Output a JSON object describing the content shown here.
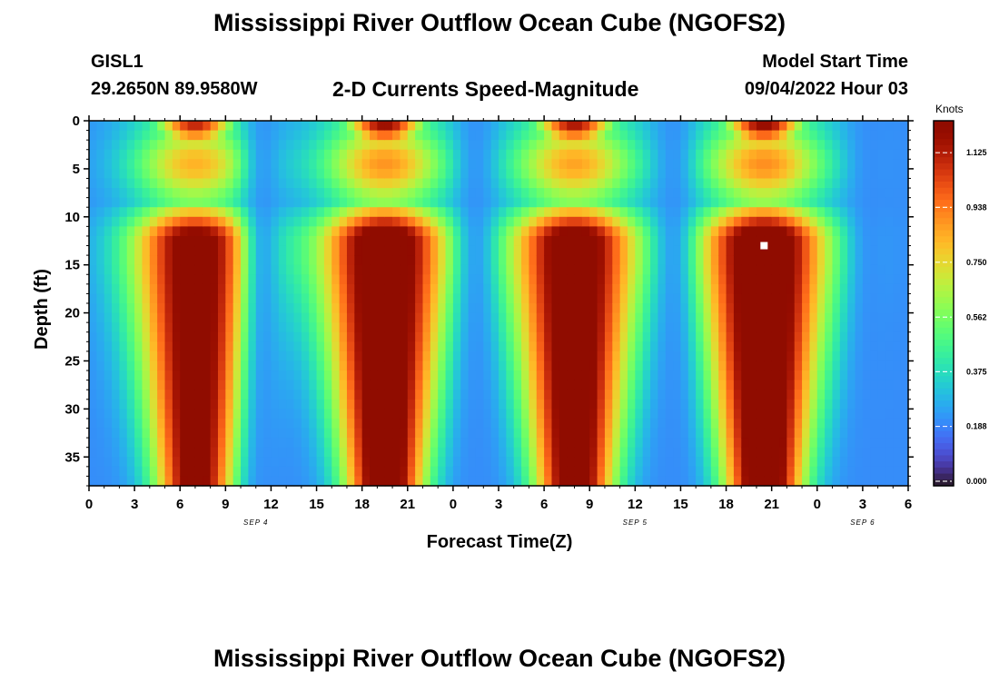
{
  "title": "Mississippi River Outflow Ocean Cube (NGOFS2)",
  "bottom_title": "Mississippi River Outflow Ocean Cube (NGOFS2)",
  "station": {
    "id": "GISL1",
    "coords": "29.2650N  89.9580W"
  },
  "model_start": {
    "label": "Model Start Time",
    "value": "09/04/2022 Hour 03"
  },
  "subtitle": "2-D Currents Speed-Magnitude",
  "chart_data": {
    "type": "heatmap",
    "title": "2-D Currents Speed-Magnitude",
    "xlabel": "Forecast Time(Z)",
    "ylabel": "Depth (ft)",
    "x_tick_labels": [
      "0",
      "3",
      "6",
      "9",
      "12",
      "15",
      "18",
      "21",
      "0",
      "3",
      "6",
      "9",
      "12",
      "15",
      "18",
      "21",
      "0",
      "3",
      "6"
    ],
    "x_hours_since_start_of_sep4": [
      0,
      3,
      6,
      9,
      12,
      15,
      18,
      21,
      24,
      27,
      30,
      33,
      36,
      39,
      42,
      45,
      48,
      51,
      54
    ],
    "xlim_hours": [
      0,
      54
    ],
    "date_labels": [
      {
        "text": "SEP 4",
        "hour": 11
      },
      {
        "text": "SEP 5",
        "hour": 36
      },
      {
        "text": "SEP 6",
        "hour": 51
      }
    ],
    "y_ticks": [
      0,
      5,
      10,
      15,
      20,
      25,
      30,
      35
    ],
    "ylim": [
      0,
      38
    ],
    "y_inverted": true,
    "colorbar": {
      "unit": "Knots",
      "ticks": [
        "0.000",
        "0.188",
        "0.375",
        "0.562",
        "0.750",
        "0.938",
        "1.125"
      ],
      "range": [
        0,
        1.25
      ],
      "colormap": "turbo"
    },
    "marker_symbol": "white-square",
    "speed_cycles": [
      {
        "peak_hour": 7,
        "peak_speed_knots": 1.1
      },
      {
        "peak_hour": 19.5,
        "peak_speed_knots": 1.2
      },
      {
        "peak_hour": 32,
        "peak_speed_knots": 1.15
      },
      {
        "peak_hour": 44.5,
        "peak_speed_knots": 1.22
      }
    ],
    "slack_hours": [
      11.5,
      25.5,
      38.5,
      51.5
    ],
    "marker": {
      "hour": 44.5,
      "depth": 13
    }
  }
}
